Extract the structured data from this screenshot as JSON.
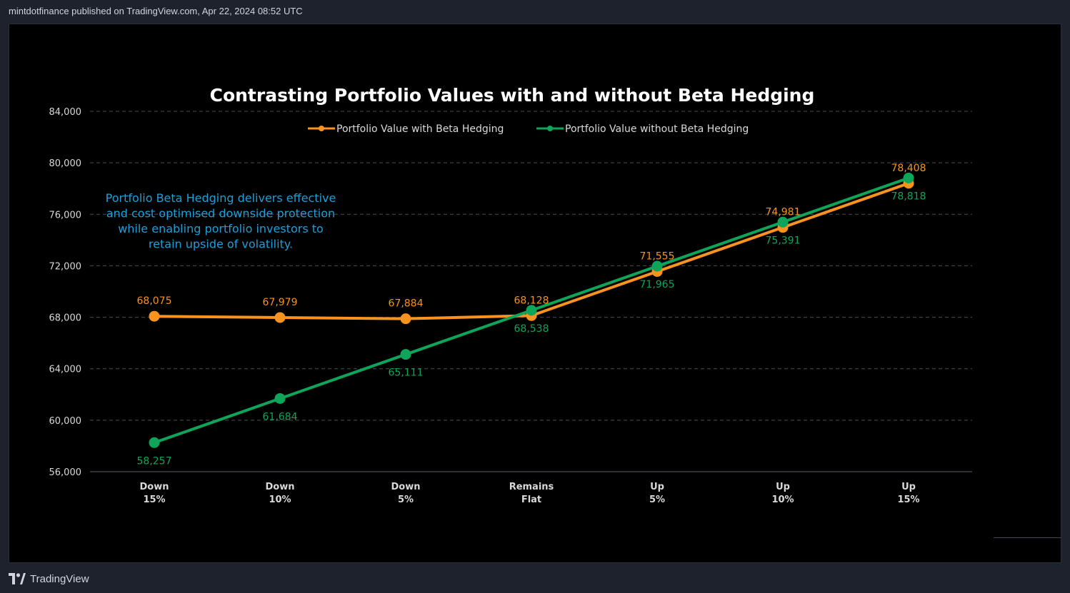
{
  "header": {
    "published_text": "mintdotfinance published on TradingView.com, Apr 22, 2024 08:52 UTC"
  },
  "footer": {
    "brand": "TradingView",
    "logo_icon": "tradingview-logo-icon"
  },
  "annotation": {
    "lines": [
      "Portfolio Beta Hedging delivers effective",
      "and cost optimised downside protection",
      "while enabling portfolio investors to",
      "retain upside of volatility."
    ],
    "color": "#1e9fd8"
  },
  "chart_data": {
    "type": "line",
    "title": "Contrasting Portfolio Values with and without Beta Hedging",
    "categories": [
      [
        "Down",
        "15%"
      ],
      [
        "Down",
        "10%"
      ],
      [
        "Down",
        "5%"
      ],
      [
        "Remains",
        "Flat"
      ],
      [
        "Up",
        "5%"
      ],
      [
        "Up",
        "10%"
      ],
      [
        "Up",
        "15%"
      ]
    ],
    "ylim": [
      56000,
      84000
    ],
    "yticks": [
      56000,
      60000,
      64000,
      68000,
      72000,
      76000,
      80000,
      84000
    ],
    "ytick_labels": [
      "56,000",
      "60,000",
      "64,000",
      "68,000",
      "72,000",
      "76,000",
      "80,000",
      "84,000"
    ],
    "grid": "horizontal dashed",
    "legend_position": "top-center",
    "series": [
      {
        "name": "Portfolio Value with Beta Hedging",
        "color": "#f7931e",
        "values": [
          68075,
          67979,
          67884,
          68128,
          71555,
          74981,
          78408
        ],
        "labels": [
          "68,075",
          "67,979",
          "67,884",
          "68,128",
          "71,555",
          "74,981",
          "78,408"
        ],
        "label_position": "above"
      },
      {
        "name": "Portfolio Value without Beta Hedging",
        "color": "#0ea55a",
        "values": [
          58257,
          61684,
          65111,
          68538,
          71965,
          75391,
          78818
        ],
        "labels": [
          "58,257",
          "61,684",
          "65,111",
          "68,538",
          "71,965",
          "75,391",
          "78,818"
        ],
        "label_position": "below"
      }
    ]
  }
}
